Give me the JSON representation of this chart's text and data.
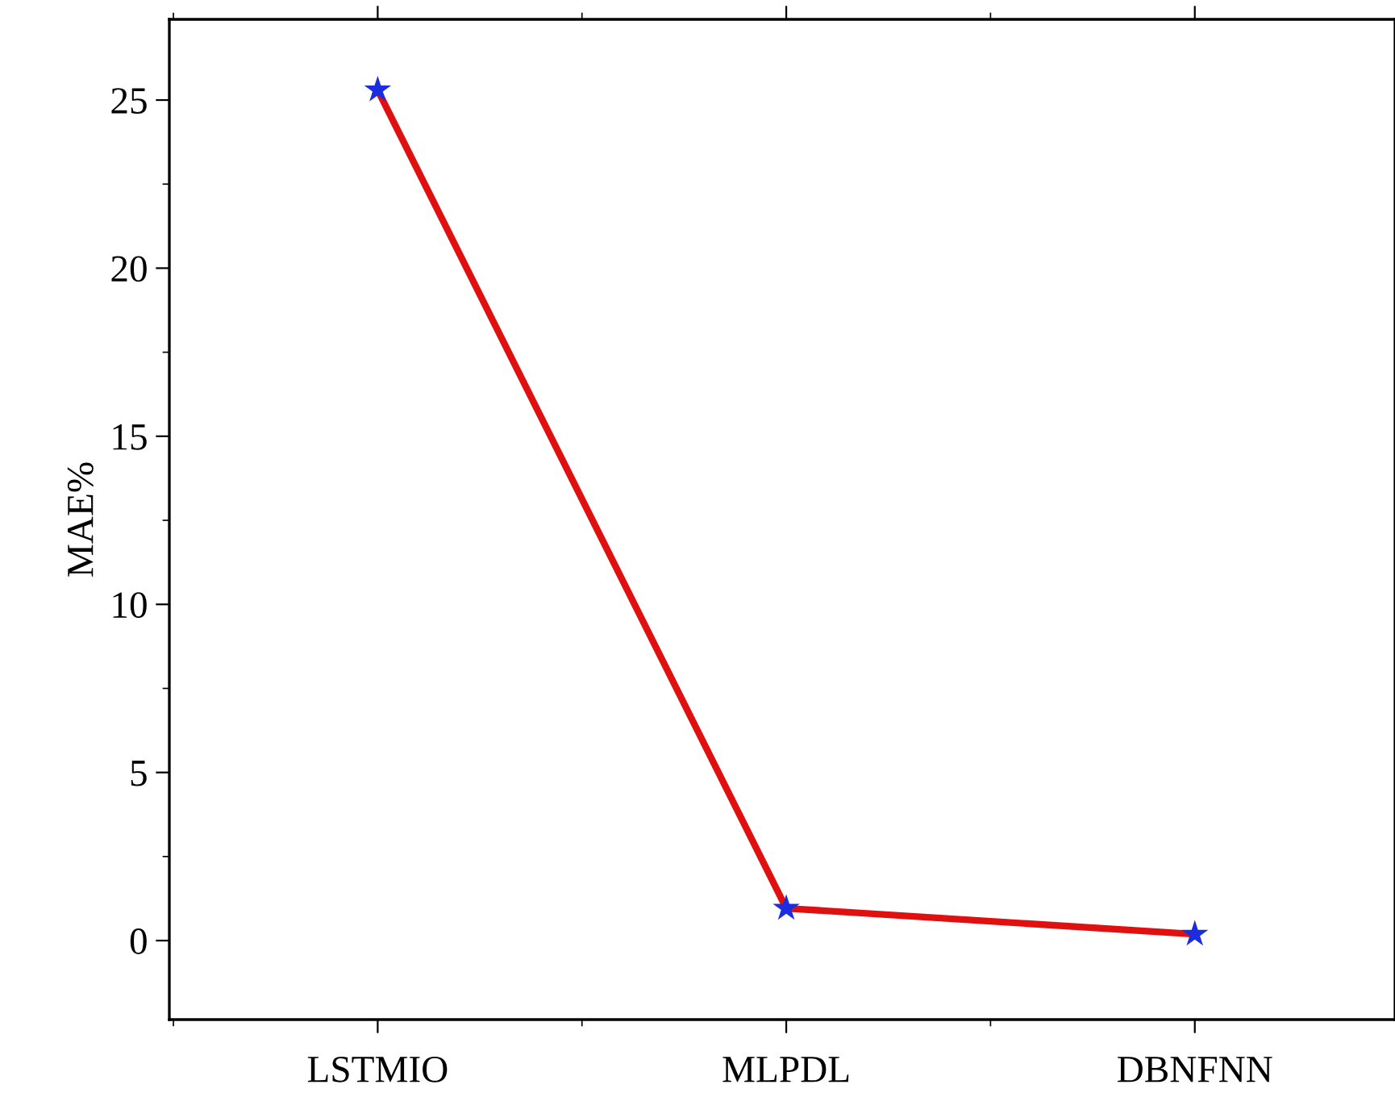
{
  "chart_data": {
    "type": "line",
    "ylabel": "MAE%",
    "categories": [
      "LSTMIO",
      "MLPDL",
      "DBNFNN"
    ],
    "series": [
      {
        "color": "#e01010",
        "colors": [
          "#1a2ee0",
          "#1a2ee0",
          "#1a2ee0"
        ],
        "values": [
          25.3,
          0.96,
          0.19
        ]
      }
    ],
    "ylim": [
      -2.35,
      27.4
    ],
    "yticks": [
      0,
      5,
      10,
      15,
      20,
      25
    ],
    "grid": false,
    "marker": "star",
    "line_style": "solid"
  }
}
